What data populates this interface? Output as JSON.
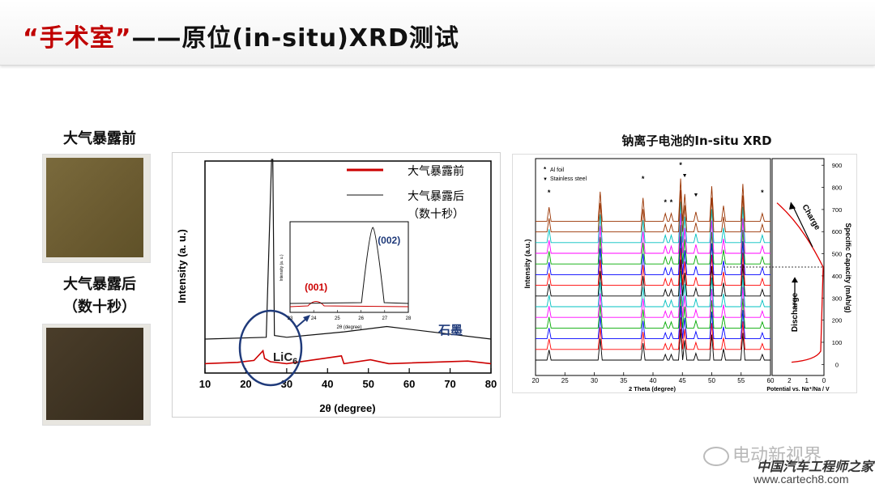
{
  "slide": {
    "title_quote": "“手术室”",
    "title_rest": "——原位(in-situ)XRD测试"
  },
  "photos": {
    "before_label": "大气暴露前",
    "after_label_line1": "大气暴露后",
    "after_label_line2": "（数十秒）"
  },
  "chart_data": [
    {
      "type": "line",
      "xlabel": "2θ (degree)",
      "ylabel": "Intensity (a. u.)",
      "xlim": [
        10,
        80
      ],
      "x_ticks": [
        10,
        20,
        30,
        40,
        50,
        60,
        70,
        80
      ],
      "legend": [
        {
          "label": "大气暴露前",
          "color": "#cc0000"
        },
        {
          "label": "大气暴露后",
          "color": "#111111"
        },
        {
          "label": "（数十秒）"
        }
      ],
      "series": [
        {
          "name": "大气暴露前",
          "color": "#cc0000",
          "x": [
            10,
            18,
            22,
            24.2,
            24.6,
            26,
            30,
            43.4,
            44,
            50.5,
            55,
            74.3,
            80
          ],
          "y": [
            0.02,
            0.04,
            0.07,
            0.22,
            0.1,
            0.05,
            0.02,
            0.14,
            0.02,
            0.08,
            0.02,
            0.06,
            0.02
          ]
        },
        {
          "name": "大气暴露后",
          "color": "#111111",
          "x": [
            10,
            25,
            26.3,
            26.6,
            27,
            30,
            44,
            54.5,
            80
          ],
          "y": [
            0.0,
            0.01,
            1.0,
            1.0,
            0.02,
            0.01,
            0.04,
            0.07,
            0.0
          ]
        }
      ],
      "annotations": [
        "石墨",
        "LiC6"
      ],
      "inset": {
        "xlabel": "2θ (degree)",
        "ylabel": "Intensity (a. u.)",
        "xlim": [
          23,
          28
        ],
        "x_ticks": [
          23,
          24,
          25,
          26,
          27,
          28
        ],
        "peaks": [
          {
            "label": "(001)",
            "x": 24.1,
            "color": "#cc0000"
          },
          {
            "label": "(002)",
            "x": 26.5,
            "color": "#1f3a7a"
          }
        ]
      }
    },
    {
      "type": "line",
      "title": "钠离子电池的In-situ XRD",
      "xlabel": "2 Theta (degree)",
      "ylabel": "Intensity (a.u.)",
      "xlim": [
        20,
        60
      ],
      "x_ticks": [
        20,
        25,
        30,
        35,
        40,
        45,
        50,
        55,
        60
      ],
      "legend": [
        {
          "marker": "*",
          "label": "Al foil"
        },
        {
          "marker": "▼",
          "label": "Stainless steel"
        }
      ],
      "peak_positions": [
        22.3,
        31,
        38.3,
        42.1,
        43.1,
        44.7,
        45.4,
        47.3,
        50,
        52,
        55.3,
        58.6
      ],
      "star_marks": [
        22.3,
        38.3,
        42.1,
        43.1,
        44.7,
        58.6
      ],
      "triangle_marks": [
        45.4,
        47.3
      ],
      "series_colors": [
        "#000000",
        "#ff0000",
        "#0000ff",
        "#00aa00",
        "#ff00ff",
        "#00c0c0",
        "#000000",
        "#ff0000",
        "#0000ff",
        "#00aa00",
        "#ff00ff",
        "#00c0c0",
        "#993300",
        "#993300"
      ],
      "secondary": {
        "xlabel": "Potential vs. Na⁺/Na / V",
        "ylabel": "Specific Capacity (mAh/g)",
        "xlim": [
          3,
          0
        ],
        "x_ticks": [
          2,
          1,
          0
        ],
        "ylim": [
          -50,
          930
        ],
        "y_ticks": [
          0,
          100,
          200,
          300,
          400,
          500,
          600,
          700,
          800,
          900
        ],
        "annotations": [
          "Charge",
          "Discharge"
        ]
      }
    }
  ],
  "watermark": {
    "line1": "电动新视界",
    "line2": "中国汽车工程师之家",
    "line3": "www.cartech8.com"
  }
}
